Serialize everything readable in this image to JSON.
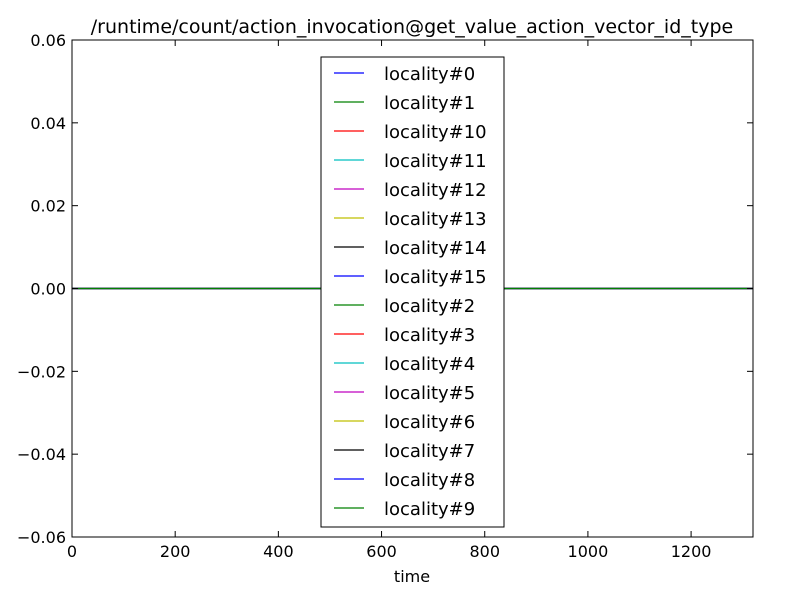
{
  "chart_data": {
    "type": "line",
    "title": "/runtime/count/action_invocation@get_value_action_vector_id_type",
    "xlabel": "time",
    "ylabel": "",
    "xlim": [
      0,
      1320
    ],
    "ylim": [
      -0.06,
      0.06
    ],
    "xticks": [
      0,
      200,
      400,
      600,
      800,
      1000,
      1200
    ],
    "xtick_labels": [
      "0",
      "200",
      "400",
      "600",
      "800",
      "1000",
      "1200"
    ],
    "yticks": [
      0.06,
      0.04,
      0.02,
      0.0,
      -0.02,
      -0.04,
      -0.06
    ],
    "ytick_labels": [
      "0.06",
      "0.04",
      "0.02",
      "0.00",
      "−0.02",
      "−0.04",
      "−0.06"
    ],
    "grid": false,
    "legend_position": "top-center",
    "x": [
      0,
      1320
    ],
    "series": [
      {
        "name": "locality#0",
        "color": "#0000ff",
        "values": [
          0,
          0
        ]
      },
      {
        "name": "locality#1",
        "color": "#008000",
        "values": [
          0,
          0
        ]
      },
      {
        "name": "locality#10",
        "color": "#ff0000",
        "values": [
          0,
          0
        ]
      },
      {
        "name": "locality#11",
        "color": "#00bfbf",
        "values": [
          0,
          0
        ]
      },
      {
        "name": "locality#12",
        "color": "#bf00bf",
        "values": [
          0,
          0
        ]
      },
      {
        "name": "locality#13",
        "color": "#bfbf00",
        "values": [
          0,
          0
        ]
      },
      {
        "name": "locality#14",
        "color": "#000000",
        "values": [
          0,
          0
        ]
      },
      {
        "name": "locality#15",
        "color": "#0000ff",
        "values": [
          0,
          0
        ]
      },
      {
        "name": "locality#2",
        "color": "#008000",
        "values": [
          0,
          0
        ]
      },
      {
        "name": "locality#3",
        "color": "#ff0000",
        "values": [
          0,
          0
        ]
      },
      {
        "name": "locality#4",
        "color": "#00bfbf",
        "values": [
          0,
          0
        ]
      },
      {
        "name": "locality#5",
        "color": "#bf00bf",
        "values": [
          0,
          0
        ]
      },
      {
        "name": "locality#6",
        "color": "#bfbf00",
        "values": [
          0,
          0
        ]
      },
      {
        "name": "locality#7",
        "color": "#000000",
        "values": [
          0,
          0
        ]
      },
      {
        "name": "locality#8",
        "color": "#0000ff",
        "values": [
          0,
          0
        ]
      },
      {
        "name": "locality#9",
        "color": "#008000",
        "values": [
          0,
          0
        ]
      }
    ]
  }
}
